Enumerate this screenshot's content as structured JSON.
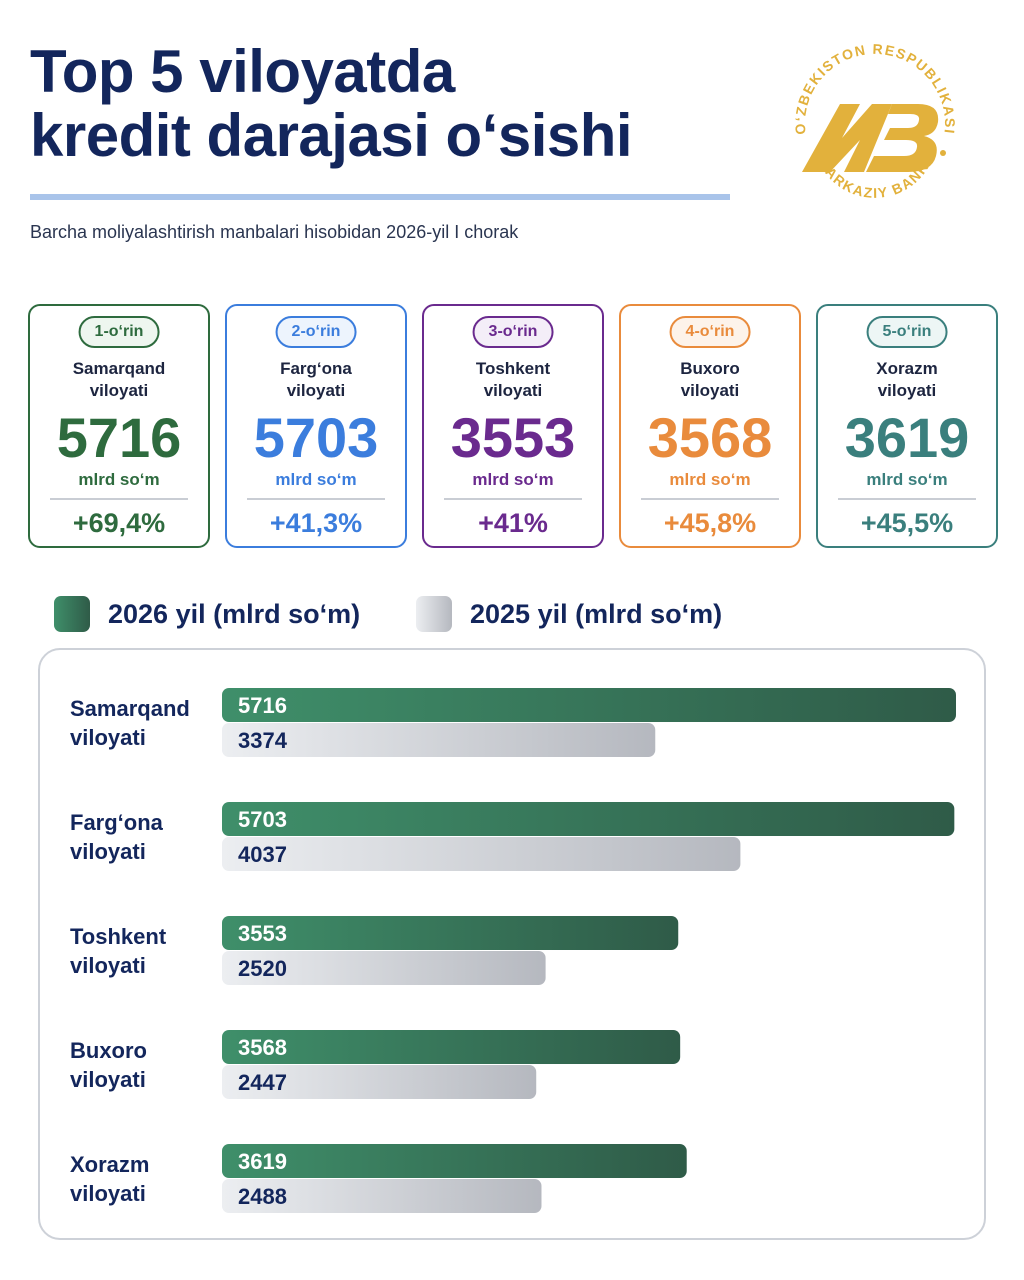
{
  "title_line1": "Top 5 viloyatda",
  "title_line2": "kredit darajasi o‘sishi",
  "subtitle": "Barcha moliyalashtirish manbalari hisobidan 2026-yil I chorak",
  "logo": {
    "text_top": "O‘ZBEKISTON RESPUBLIKASI",
    "text_bottom": "MARKAZIY BANKI",
    "monogram": "MB",
    "color": "#e2b13c"
  },
  "cards": [
    {
      "rank": "1-o‘rin",
      "region_line1": "Samarqand",
      "region_line2": "viloyati",
      "value": "5716",
      "unit": "mlrd so‘m",
      "growth": "+69,4%",
      "color": "#2e6b3e",
      "badge_bg": "#eef6ef"
    },
    {
      "rank": "2-o‘rin",
      "region_line1": "Farg‘ona",
      "region_line2": "viloyati",
      "value": "5703",
      "unit": "mlrd so‘m",
      "growth": "+41,3%",
      "color": "#3b7ddd",
      "badge_bg": "#edf4fd"
    },
    {
      "rank": "3-o‘rin",
      "region_line1": "Toshkent",
      "region_line2": "viloyati",
      "value": "3553",
      "unit": "mlrd so‘m",
      "growth": "+41%",
      "color": "#6a2a8e",
      "badge_bg": "#f4eef8"
    },
    {
      "rank": "4-o‘rin",
      "region_line1": "Buxoro",
      "region_line2": "viloyati",
      "value": "3568",
      "unit": "mlrd so‘m",
      "growth": "+45,8%",
      "color": "#e98b3c",
      "badge_bg": "#fdf3ea"
    },
    {
      "rank": "5-o‘rin",
      "region_line1": "Xorazm",
      "region_line2": "viloyati",
      "value": "3619",
      "unit": "mlrd so‘m",
      "growth": "+45,5%",
      "color": "#3a7f7d",
      "badge_bg": "#edf6f5"
    }
  ],
  "legend": {
    "series_2026": "2026 yil (mlrd so‘m)",
    "series_2025": "2025 yil (mlrd so‘m)"
  },
  "colors": {
    "series_2026_start": "#3f8f6a",
    "series_2026_end": "#2f5b48",
    "series_2025_start": "#eceef1",
    "series_2025_end": "#b5b8bf",
    "title": "#13265c",
    "rule": "#a9c4ea"
  },
  "chart_data": {
    "type": "bar",
    "orientation": "horizontal",
    "categories": [
      [
        "Samarqand",
        "viloyati"
      ],
      [
        "Farg‘ona",
        "viloyati"
      ],
      [
        "Toshkent",
        "viloyati"
      ],
      [
        "Buxoro",
        "viloyati"
      ],
      [
        "Xorazm",
        "viloyati"
      ]
    ],
    "series": [
      {
        "name": "2026 yil (mlrd so‘m)",
        "values": [
          5716,
          5703,
          3553,
          3568,
          3619
        ]
      },
      {
        "name": "2025 yil (mlrd so‘m)",
        "values": [
          3374,
          4037,
          2520,
          2447,
          2488
        ]
      }
    ],
    "xlim": [
      0,
      5716
    ],
    "data_labels": true,
    "grid": false,
    "legend_position": "top"
  }
}
